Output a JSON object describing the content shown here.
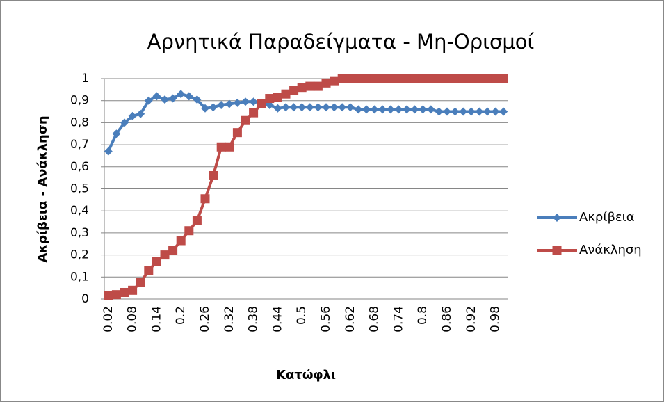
{
  "chart_data": {
    "type": "line",
    "title": "Αρνητικά Παραδείγματα - Μη-Ορισμοί",
    "x_label": "Κατώφλι",
    "y_label": "Ακρίβεια - Ανάκληση",
    "categories": [
      "0.02",
      null,
      null,
      "0.08",
      null,
      null,
      "0.14",
      null,
      null,
      "0.2",
      null,
      null,
      "0.26",
      null,
      null,
      "0.32",
      null,
      null,
      "0.38",
      null,
      null,
      "0.44",
      null,
      null,
      "0.5",
      null,
      null,
      "0.56",
      null,
      null,
      "0.62",
      null,
      null,
      "0.68",
      null,
      null,
      "0.74",
      null,
      null,
      "0.8",
      null,
      null,
      "0.86",
      null,
      null,
      "0.92",
      null,
      null,
      "0.98",
      null
    ],
    "series": [
      {
        "name": "Ακρίβεια",
        "color": "#4a7ebb",
        "marker": "diamond",
        "values": [
          0.67,
          0.75,
          0.8,
          0.83,
          0.84,
          0.9,
          0.92,
          0.905,
          0.91,
          0.93,
          0.92,
          0.905,
          0.865,
          0.87,
          0.88,
          0.885,
          0.89,
          0.895,
          0.895,
          0.89,
          0.88,
          0.865,
          0.87,
          0.87,
          0.87,
          0.87,
          0.87,
          0.87,
          0.87,
          0.87,
          0.87,
          0.86,
          0.86,
          0.86,
          0.86,
          0.86,
          0.86,
          0.86,
          0.86,
          0.86,
          0.86,
          0.85,
          0.85,
          0.85,
          0.85,
          0.85,
          0.85,
          0.85,
          0.85,
          0.85
        ]
      },
      {
        "name": "Ανάκληση",
        "color": "#be4b48",
        "marker": "square",
        "values": [
          0.015,
          0.02,
          0.03,
          0.04,
          0.075,
          0.13,
          0.17,
          0.2,
          0.22,
          0.265,
          0.31,
          0.355,
          0.455,
          0.56,
          0.69,
          0.69,
          0.755,
          0.81,
          0.845,
          0.885,
          0.91,
          0.915,
          0.93,
          0.945,
          0.96,
          0.965,
          0.965,
          0.98,
          0.99,
          1,
          1,
          1,
          1,
          1,
          1,
          1,
          1,
          1,
          1,
          1,
          1,
          1,
          1,
          1,
          1,
          1,
          1,
          1,
          1,
          1
        ]
      }
    ],
    "ylim": [
      0,
      1
    ],
    "yticks": [
      0,
      {
        "value": 0.1,
        "label": "0,1"
      },
      {
        "value": 0.2,
        "label": "0,2"
      },
      {
        "value": 0.3,
        "label": "0,3"
      },
      {
        "value": 0.4,
        "label": "0,4"
      },
      {
        "value": 0.5,
        "label": "0,5"
      },
      {
        "value": 0.6,
        "label": "0,6"
      },
      {
        "value": 0.7,
        "label": "0,7"
      },
      {
        "value": 0.8,
        "label": "0,8"
      },
      {
        "value": 0.9,
        "label": "0,9"
      },
      1
    ],
    "grid": true,
    "legend": "right"
  }
}
